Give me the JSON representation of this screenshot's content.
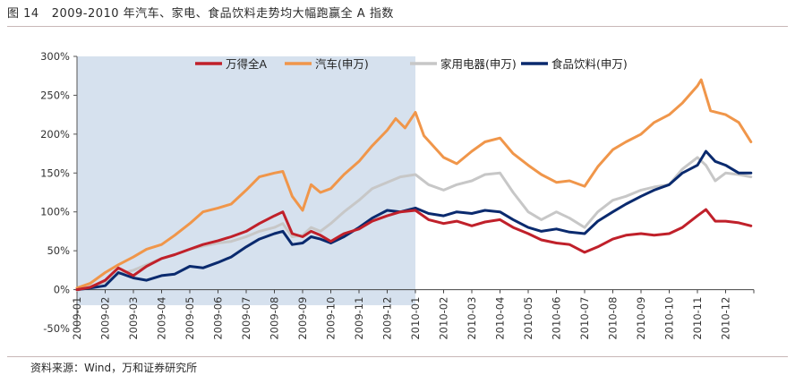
{
  "figure": {
    "number": "图 14",
    "title": "2009-2010 年汽车、家电、食品饮料走势均大幅跑赢全 A 指数",
    "source": "资料来源：Wind，万和证券研究所"
  },
  "chart_data": {
    "type": "line",
    "x_unit": "month",
    "x_ticks": [
      "2009-01",
      "2009-02",
      "2009-03",
      "2009-04",
      "2009-05",
      "2009-06",
      "2009-07",
      "2009-08",
      "2009-09",
      "2009-10",
      "2009-11",
      "2009-12",
      "2010-01",
      "2010-02",
      "2010-03",
      "2010-04",
      "2010-05",
      "2010-06",
      "2010-07",
      "2010-08",
      "2010-09",
      "2010-10",
      "2010-11",
      "2010-12"
    ],
    "y_ticks": [
      "300%",
      "250%",
      "200%",
      "150%",
      "100%",
      "50%",
      "0%",
      "-50%"
    ],
    "ylim": [
      -50,
      300
    ],
    "y_unit": "percent",
    "highlight_range": [
      "2009-01",
      "2010-01"
    ],
    "legend_position": "top",
    "grid": false,
    "series": [
      {
        "name": "万得全A",
        "color": "#c0202a",
        "points": [
          [
            "2009-01",
            0
          ],
          [
            "2009-01-15",
            3
          ],
          [
            "2009-02",
            12
          ],
          [
            "2009-02-15",
            28
          ],
          [
            "2009-03",
            18
          ],
          [
            "2009-03-15",
            30
          ],
          [
            "2009-04",
            40
          ],
          [
            "2009-04-15",
            45
          ],
          [
            "2009-05",
            52
          ],
          [
            "2009-05-15",
            58
          ],
          [
            "2009-06",
            63
          ],
          [
            "2009-06-15",
            68
          ],
          [
            "2009-07",
            75
          ],
          [
            "2009-07-15",
            85
          ],
          [
            "2009-08",
            95
          ],
          [
            "2009-08-10",
            100
          ],
          [
            "2009-08-20",
            72
          ],
          [
            "2009-09",
            68
          ],
          [
            "2009-09-10",
            75
          ],
          [
            "2009-09-20",
            70
          ],
          [
            "2009-10",
            62
          ],
          [
            "2009-10-15",
            72
          ],
          [
            "2009-11",
            78
          ],
          [
            "2009-11-15",
            88
          ],
          [
            "2009-12",
            95
          ],
          [
            "2009-12-15",
            100
          ],
          [
            "2010-01",
            102
          ],
          [
            "2010-01-15",
            90
          ],
          [
            "2010-02",
            85
          ],
          [
            "2010-02-15",
            88
          ],
          [
            "2010-03",
            82
          ],
          [
            "2010-03-15",
            87
          ],
          [
            "2010-04",
            90
          ],
          [
            "2010-04-15",
            80
          ],
          [
            "2010-05",
            72
          ],
          [
            "2010-05-15",
            64
          ],
          [
            "2010-06",
            60
          ],
          [
            "2010-06-15",
            58
          ],
          [
            "2010-07",
            48
          ],
          [
            "2010-07-15",
            55
          ],
          [
            "2010-08",
            65
          ],
          [
            "2010-08-15",
            70
          ],
          [
            "2010-09",
            72
          ],
          [
            "2010-09-15",
            70
          ],
          [
            "2010-10",
            72
          ],
          [
            "2010-10-15",
            80
          ],
          [
            "2010-11",
            95
          ],
          [
            "2010-11-10",
            103
          ],
          [
            "2010-11-20",
            88
          ],
          [
            "2010-12",
            88
          ],
          [
            "2010-12-15",
            86
          ],
          [
            "2010-12-28",
            82
          ]
        ]
      },
      {
        "name": "汽车(申万)",
        "color": "#f0964a",
        "points": [
          [
            "2009-01",
            2
          ],
          [
            "2009-01-15",
            8
          ],
          [
            "2009-02",
            22
          ],
          [
            "2009-02-15",
            32
          ],
          [
            "2009-03",
            42
          ],
          [
            "2009-03-15",
            52
          ],
          [
            "2009-04",
            58
          ],
          [
            "2009-04-15",
            70
          ],
          [
            "2009-05",
            85
          ],
          [
            "2009-05-15",
            100
          ],
          [
            "2009-06",
            105
          ],
          [
            "2009-06-15",
            110
          ],
          [
            "2009-07",
            128
          ],
          [
            "2009-07-15",
            145
          ],
          [
            "2009-08",
            150
          ],
          [
            "2009-08-10",
            152
          ],
          [
            "2009-08-20",
            120
          ],
          [
            "2009-09",
            102
          ],
          [
            "2009-09-10",
            135
          ],
          [
            "2009-09-20",
            125
          ],
          [
            "2009-10",
            130
          ],
          [
            "2009-10-15",
            148
          ],
          [
            "2009-11",
            165
          ],
          [
            "2009-11-15",
            185
          ],
          [
            "2009-12",
            205
          ],
          [
            "2009-12-10",
            220
          ],
          [
            "2009-12-20",
            208
          ],
          [
            "2010-01",
            228
          ],
          [
            "2010-01-10",
            198
          ],
          [
            "2010-02",
            170
          ],
          [
            "2010-02-15",
            162
          ],
          [
            "2010-03",
            178
          ],
          [
            "2010-03-15",
            190
          ],
          [
            "2010-04",
            195
          ],
          [
            "2010-04-15",
            175
          ],
          [
            "2010-05",
            160
          ],
          [
            "2010-05-15",
            148
          ],
          [
            "2010-06",
            138
          ],
          [
            "2010-06-15",
            140
          ],
          [
            "2010-07",
            133
          ],
          [
            "2010-07-15",
            158
          ],
          [
            "2010-08",
            180
          ],
          [
            "2010-08-15",
            190
          ],
          [
            "2010-09",
            200
          ],
          [
            "2010-09-15",
            215
          ],
          [
            "2010-10",
            225
          ],
          [
            "2010-10-15",
            240
          ],
          [
            "2010-11",
            262
          ],
          [
            "2010-11-05",
            270
          ],
          [
            "2010-11-15",
            230
          ],
          [
            "2010-12",
            225
          ],
          [
            "2010-12-15",
            215
          ],
          [
            "2010-12-28",
            190
          ]
        ]
      },
      {
        "name": "家用电器(申万)",
        "color": "#c7c7c7",
        "points": [
          [
            "2009-01",
            -1
          ],
          [
            "2009-01-15",
            4
          ],
          [
            "2009-02",
            10
          ],
          [
            "2009-02-15",
            20
          ],
          [
            "2009-03",
            25
          ],
          [
            "2009-03-15",
            32
          ],
          [
            "2009-04",
            40
          ],
          [
            "2009-04-15",
            45
          ],
          [
            "2009-05",
            52
          ],
          [
            "2009-05-15",
            56
          ],
          [
            "2009-06",
            60
          ],
          [
            "2009-06-15",
            62
          ],
          [
            "2009-07",
            68
          ],
          [
            "2009-07-15",
            75
          ],
          [
            "2009-08",
            80
          ],
          [
            "2009-08-10",
            85
          ],
          [
            "2009-08-20",
            68
          ],
          [
            "2009-09",
            70
          ],
          [
            "2009-09-10",
            80
          ],
          [
            "2009-09-20",
            75
          ],
          [
            "2009-10",
            85
          ],
          [
            "2009-10-15",
            100
          ],
          [
            "2009-11",
            115
          ],
          [
            "2009-11-15",
            130
          ],
          [
            "2009-12",
            138
          ],
          [
            "2009-12-15",
            145
          ],
          [
            "2010-01",
            148
          ],
          [
            "2010-01-15",
            135
          ],
          [
            "2010-02",
            128
          ],
          [
            "2010-02-15",
            135
          ],
          [
            "2010-03",
            140
          ],
          [
            "2010-03-15",
            148
          ],
          [
            "2010-04",
            150
          ],
          [
            "2010-04-15",
            125
          ],
          [
            "2010-05",
            100
          ],
          [
            "2010-05-15",
            90
          ],
          [
            "2010-06",
            100
          ],
          [
            "2010-06-15",
            92
          ],
          [
            "2010-07",
            80
          ],
          [
            "2010-07-15",
            100
          ],
          [
            "2010-08",
            115
          ],
          [
            "2010-08-15",
            120
          ],
          [
            "2010-09",
            128
          ],
          [
            "2010-09-15",
            132
          ],
          [
            "2010-10",
            135
          ],
          [
            "2010-10-15",
            155
          ],
          [
            "2010-11",
            170
          ],
          [
            "2010-11-10",
            160
          ],
          [
            "2010-11-20",
            140
          ],
          [
            "2010-12",
            150
          ],
          [
            "2010-12-15",
            148
          ],
          [
            "2010-12-28",
            145
          ]
        ]
      },
      {
        "name": "食品饮料(申万)",
        "color": "#0a2a6e",
        "points": [
          [
            "2009-01",
            0
          ],
          [
            "2009-01-15",
            2
          ],
          [
            "2009-02",
            5
          ],
          [
            "2009-02-15",
            22
          ],
          [
            "2009-03",
            15
          ],
          [
            "2009-03-15",
            12
          ],
          [
            "2009-04",
            18
          ],
          [
            "2009-04-15",
            20
          ],
          [
            "2009-05",
            30
          ],
          [
            "2009-05-15",
            28
          ],
          [
            "2009-06",
            35
          ],
          [
            "2009-06-15",
            42
          ],
          [
            "2009-07",
            55
          ],
          [
            "2009-07-15",
            65
          ],
          [
            "2009-08",
            72
          ],
          [
            "2009-08-10",
            75
          ],
          [
            "2009-08-20",
            58
          ],
          [
            "2009-09",
            60
          ],
          [
            "2009-09-10",
            68
          ],
          [
            "2009-09-20",
            65
          ],
          [
            "2009-10",
            60
          ],
          [
            "2009-10-15",
            68
          ],
          [
            "2009-11",
            80
          ],
          [
            "2009-11-15",
            92
          ],
          [
            "2009-12",
            102
          ],
          [
            "2009-12-15",
            100
          ],
          [
            "2010-01",
            105
          ],
          [
            "2010-01-15",
            98
          ],
          [
            "2010-02",
            95
          ],
          [
            "2010-02-15",
            100
          ],
          [
            "2010-03",
            98
          ],
          [
            "2010-03-15",
            102
          ],
          [
            "2010-04",
            100
          ],
          [
            "2010-04-15",
            90
          ],
          [
            "2010-05",
            80
          ],
          [
            "2010-05-15",
            75
          ],
          [
            "2010-06",
            78
          ],
          [
            "2010-06-15",
            74
          ],
          [
            "2010-07",
            72
          ],
          [
            "2010-07-15",
            88
          ],
          [
            "2010-08",
            100
          ],
          [
            "2010-08-15",
            110
          ],
          [
            "2010-09",
            120
          ],
          [
            "2010-09-15",
            128
          ],
          [
            "2010-10",
            135
          ],
          [
            "2010-10-15",
            150
          ],
          [
            "2010-11",
            160
          ],
          [
            "2010-11-10",
            178
          ],
          [
            "2010-11-20",
            165
          ],
          [
            "2010-12",
            160
          ],
          [
            "2010-12-15",
            150
          ],
          [
            "2010-12-28",
            150
          ]
        ]
      }
    ]
  }
}
